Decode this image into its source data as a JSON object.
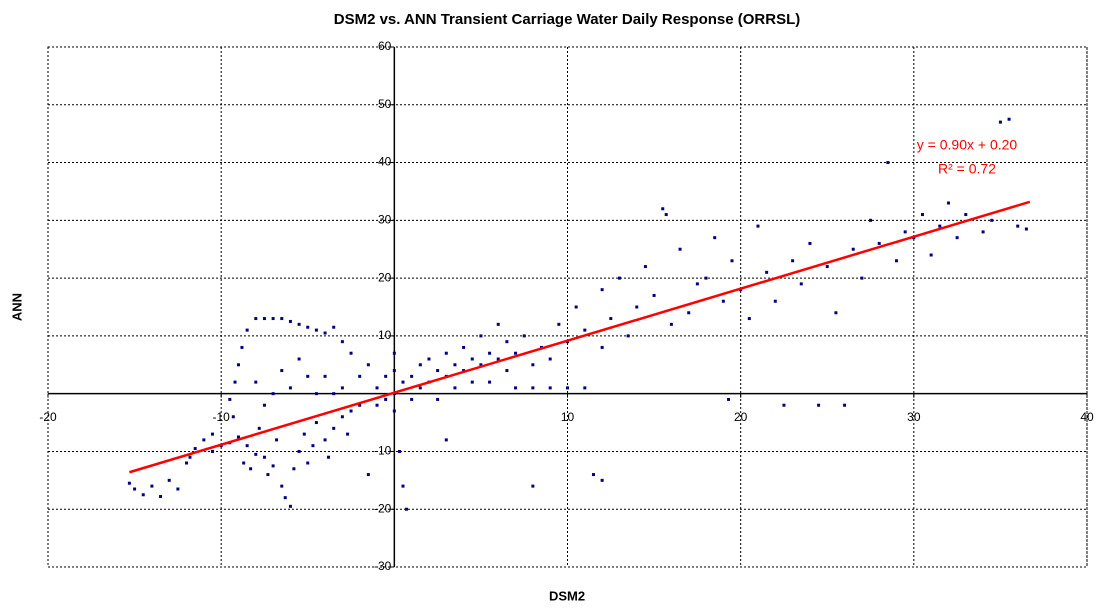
{
  "chart_data": {
    "type": "scatter",
    "title": "DSM2 vs. ANN Transient Carriage Water Daily Response (ORRSL)",
    "x_label": "DSM2",
    "y_label": "ANN",
    "color": "#000080",
    "xlim": [
      -20,
      40
    ],
    "ylim": [
      -30,
      60
    ],
    "xticks": [
      -20,
      -10,
      10,
      20,
      30,
      40
    ],
    "yticks": [
      -30,
      -20,
      -10,
      10,
      20,
      30,
      40,
      50,
      60
    ],
    "grid": true,
    "x": [
      -15.3,
      -15,
      -14.5,
      -14,
      -13.5,
      -13,
      -12.5,
      -12,
      -11.8,
      -11.5,
      -11,
      -10.5,
      -10,
      -9.5,
      -9,
      -8.7,
      -8.5,
      -8.3,
      -8,
      -7.8,
      -7.5,
      -7.3,
      -7,
      -6.8,
      -6.5,
      -6.3,
      -6,
      -5.8,
      -5.5,
      -5.2,
      -5,
      -4.7,
      -4.5,
      -4,
      -3.8,
      -3.5,
      -3,
      -2.7,
      -2.5,
      -2,
      -9,
      -8.8,
      -8.5,
      -8,
      -7.5,
      -7,
      -6.5,
      -6,
      -5.5,
      -5,
      -4.5,
      -4,
      -3.5,
      -3,
      -2.5,
      -9.2,
      -9.5,
      -9.3,
      -8,
      -7.5,
      -7,
      -6.5,
      -6,
      -5.5,
      -5,
      -4.5,
      -4,
      -3.5,
      -3,
      -2,
      -1.5,
      -1,
      -1,
      -0.5,
      -0.5,
      0,
      0,
      0,
      0,
      0.3,
      0.5,
      0.7,
      0.5,
      1,
      1,
      1.5,
      1.5,
      2,
      2,
      2.5,
      2.5,
      3,
      3,
      3.5,
      3.5,
      4,
      4,
      4.5,
      4.5,
      5,
      5,
      5.5,
      5.5,
      6,
      6,
      6.5,
      6.5,
      7,
      7,
      7.5,
      8,
      8,
      8.5,
      9,
      9,
      9.5,
      10,
      10,
      10.5,
      11,
      11,
      11.5,
      12,
      12,
      12.5,
      13,
      13.5,
      14,
      14.5,
      15,
      15.5,
      15.7,
      16,
      16.5,
      17,
      17.5,
      18,
      18.5,
      19,
      19.3,
      19.5,
      20,
      20.5,
      21,
      21.5,
      22,
      22.5,
      23,
      23.5,
      24,
      24.5,
      25,
      25.5,
      26,
      26.5,
      27,
      27.5,
      28,
      28.5,
      29,
      29.5,
      30,
      30.5,
      31,
      31.5,
      32,
      32.5,
      33,
      34,
      34.5,
      35,
      35.5,
      36,
      36.5,
      8,
      12,
      -10.5,
      3,
      -1.5
    ],
    "values": [
      -15.5,
      -16.5,
      -17.5,
      -16,
      -17.8,
      -15,
      -16.5,
      -12,
      -11,
      -9.5,
      -8,
      -10,
      -9,
      -8.5,
      -7.5,
      -12,
      -9,
      -13,
      -10.5,
      -6,
      -11,
      -14,
      -12.5,
      -8,
      -16,
      -18,
      -19.5,
      -13,
      -10,
      -7,
      -12,
      -9,
      -5,
      -8,
      -11,
      -6,
      -4,
      -7,
      -3,
      -2,
      5,
      8,
      11,
      13,
      13,
      13,
      13,
      12.5,
      12,
      11.5,
      11,
      10.5,
      11.5,
      9,
      7,
      2,
      -1,
      -4,
      2,
      -2,
      0,
      4,
      1,
      6,
      3,
      0,
      3,
      0,
      1,
      3,
      5,
      1,
      -2,
      3,
      -1,
      0,
      4,
      7,
      -3,
      -10,
      -16,
      -20,
      2,
      3,
      -1,
      5,
      1,
      2,
      6,
      4,
      -1,
      3,
      7,
      5,
      1,
      4,
      8,
      2,
      6,
      5,
      10,
      7,
      2,
      6,
      12,
      4,
      9,
      1,
      7,
      10,
      5,
      1,
      8,
      1,
      6,
      12,
      9,
      1,
      15,
      1,
      11,
      -14,
      18,
      8,
      13,
      20,
      10,
      15,
      22,
      17,
      32,
      31,
      12,
      25,
      14,
      19,
      20,
      27,
      16,
      -1,
      23,
      18,
      13,
      29,
      21,
      16,
      -2,
      23,
      19,
      26,
      -2,
      22,
      14,
      -2,
      25,
      20,
      30,
      26,
      40,
      23,
      28,
      27,
      31,
      24,
      29,
      33,
      27,
      31,
      28,
      30,
      47,
      47.5,
      29,
      28.5,
      -16,
      -15,
      -7,
      -8,
      -14
    ],
    "trendline": {
      "x": [
        -15.3,
        36.7
      ],
      "y": [
        -13.6,
        33.2
      ],
      "color": "#ff0000",
      "label": "y = 0.90x + 0.20",
      "r2_label": "R² = 0.72"
    }
  }
}
